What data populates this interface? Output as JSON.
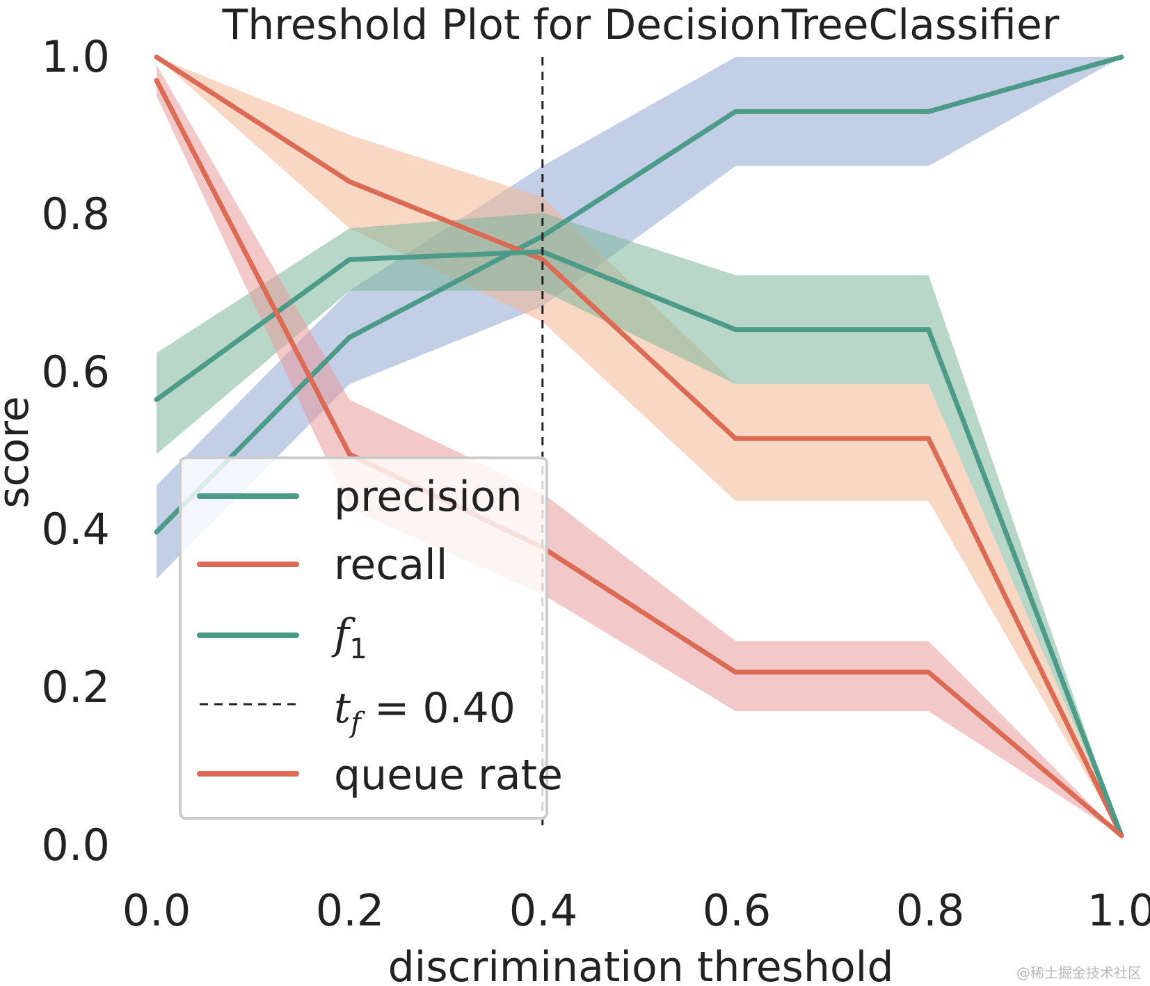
{
  "chart_data": {
    "type": "line",
    "title": "Threshold Plot for DecisionTreeClassifier",
    "xlabel": "discrimination threshold",
    "ylabel": "score",
    "xlim": [
      0.0,
      1.0
    ],
    "ylim": [
      0.0,
      1.0
    ],
    "x_ticks": [
      "0.0",
      "0.2",
      "0.4",
      "0.6",
      "0.8",
      "1.0"
    ],
    "y_ticks": [
      "0.0",
      "0.2",
      "0.4",
      "0.6",
      "0.8",
      "1.0"
    ],
    "grid": false,
    "legend_position": "lower-left",
    "x": [
      0.0,
      0.2,
      0.4,
      0.6,
      0.8,
      1.0
    ],
    "series": [
      {
        "name": "precision",
        "color": "#4c9a88",
        "band_color": "#8fa7d2",
        "values": [
          0.39,
          0.64,
          0.77,
          0.93,
          0.93,
          1.0
        ],
        "lower": [
          0.33,
          0.58,
          0.68,
          0.86,
          0.86,
          1.0
        ],
        "upper": [
          0.45,
          0.7,
          0.86,
          1.0,
          1.0,
          1.0
        ]
      },
      {
        "name": "recall",
        "color": "#dc6b55",
        "band_color": "#f2b894",
        "values": [
          1.0,
          0.84,
          0.74,
          0.51,
          0.51,
          0.0
        ],
        "lower": [
          1.0,
          0.78,
          0.66,
          0.43,
          0.43,
          0.0
        ],
        "upper": [
          1.0,
          0.9,
          0.82,
          0.58,
          0.58,
          0.0
        ]
      },
      {
        "name": "f1",
        "color": "#4c9a88",
        "band_color": "#7fb79a",
        "values": [
          0.56,
          0.74,
          0.75,
          0.65,
          0.65,
          0.0
        ],
        "lower": [
          0.49,
          0.7,
          0.7,
          0.58,
          0.58,
          0.0
        ],
        "upper": [
          0.62,
          0.78,
          0.8,
          0.72,
          0.72,
          0.0
        ]
      },
      {
        "name": "queue rate",
        "color": "#dc6b55",
        "band_color": "#e89a9c",
        "values": [
          0.97,
          0.49,
          0.37,
          0.21,
          0.21,
          0.0
        ],
        "lower": [
          0.95,
          0.42,
          0.31,
          0.16,
          0.16,
          0.0
        ],
        "upper": [
          0.99,
          0.56,
          0.44,
          0.25,
          0.25,
          0.0
        ]
      }
    ],
    "threshold": {
      "value": 0.4,
      "label": "t_f = 0.40",
      "color": "#222222"
    },
    "legend": {
      "precision": "precision",
      "recall": "recall",
      "f1_base": "f",
      "f1_sub": "1",
      "threshold_base": "t",
      "threshold_sub": "f",
      "threshold_eq": " = 0.40",
      "queue_rate": "queue rate"
    }
  },
  "watermark": "@稀土掘金技术社区"
}
